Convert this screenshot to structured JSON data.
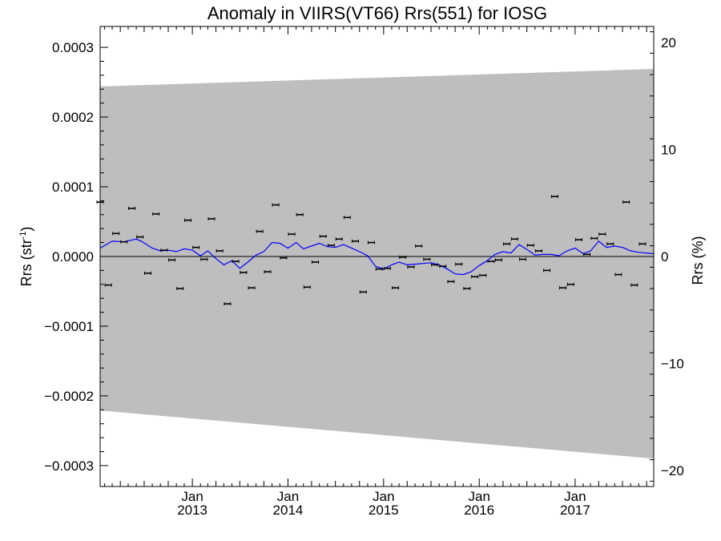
{
  "chart_data": {
    "type": "scatter",
    "title": "Anomaly in VIIRS(VT66) Rrs(551) for IOSG",
    "ylabel_left": "Rrs (str",
    "ylabel_left_sup": "-1",
    "ylabel_left_close": ")",
    "ylabel_right": "Rrs (%)",
    "xlim": [
      "2012-01-15",
      "2017-10-28"
    ],
    "ylim_left": [
      -0.00033,
      0.00033
    ],
    "ylim_right": [
      -21.5,
      21.5
    ],
    "x_ticks": [
      {
        "month": "Jan",
        "year": "2013",
        "date": "2013-01-01"
      },
      {
        "month": "Jan",
        "year": "2014",
        "date": "2014-01-01"
      },
      {
        "month": "Jan",
        "year": "2015",
        "date": "2015-01-01"
      },
      {
        "month": "Jan",
        "year": "2016",
        "date": "2016-01-01"
      },
      {
        "month": "Jan",
        "year": "2017",
        "date": "2017-01-01"
      }
    ],
    "y_ticks_left": [
      {
        "value": 0.0003,
        "label": "0.0003"
      },
      {
        "value": 0.0002,
        "label": "0.0002"
      },
      {
        "value": 0.0001,
        "label": "0.0001"
      },
      {
        "value": 0.0,
        "label": "0.0000"
      },
      {
        "value": -0.0001,
        "label": "−0.0001"
      },
      {
        "value": -0.0002,
        "label": "−0.0002"
      },
      {
        "value": -0.0003,
        "label": "−0.0003"
      }
    ],
    "y_ticks_right": [
      {
        "value": 20,
        "label": "20"
      },
      {
        "value": 10,
        "label": "10"
      },
      {
        "value": 0,
        "label": "0"
      },
      {
        "value": -10,
        "label": "−10"
      },
      {
        "value": -20,
        "label": "−20"
      }
    ],
    "uncertainty_band": {
      "x": [
        "2012-01-15",
        "2017-10-28"
      ],
      "upper": [
        0.000244,
        0.000269
      ],
      "lower": [
        -0.000221,
        -0.00029
      ],
      "color": "#bebebe"
    },
    "zero_line": 0.0,
    "series": [
      {
        "marker": "errorbar",
        "color": "#000000",
        "points": [
          {
            "x": "2012-01-15",
            "y": 7.8e-05
          },
          {
            "x": "2012-02-15",
            "y": -4.1e-05
          },
          {
            "x": "2012-03-15",
            "y": 3.3e-05
          },
          {
            "x": "2012-04-15",
            "y": 2.1e-05
          },
          {
            "x": "2012-05-15",
            "y": 6.9e-05
          },
          {
            "x": "2012-06-15",
            "y": 2.8e-05
          },
          {
            "x": "2012-07-15",
            "y": -2.4e-05
          },
          {
            "x": "2012-08-15",
            "y": 6.1e-05
          },
          {
            "x": "2012-09-15",
            "y": 9e-06
          },
          {
            "x": "2012-10-15",
            "y": -5e-06
          },
          {
            "x": "2012-11-15",
            "y": -4.6e-05
          },
          {
            "x": "2012-12-15",
            "y": 5.2e-05
          },
          {
            "x": "2013-01-15",
            "y": 1.3e-05
          },
          {
            "x": "2013-02-15",
            "y": -4e-06
          },
          {
            "x": "2013-03-15",
            "y": 5.4e-05
          },
          {
            "x": "2013-04-15",
            "y": 8e-06
          },
          {
            "x": "2013-05-15",
            "y": -6.8e-05
          },
          {
            "x": "2013-06-15",
            "y": -7e-06
          },
          {
            "x": "2013-07-15",
            "y": -2.3e-05
          },
          {
            "x": "2013-08-15",
            "y": -4.5e-05
          },
          {
            "x": "2013-09-15",
            "y": 3.6e-05
          },
          {
            "x": "2013-10-15",
            "y": -2.2e-05
          },
          {
            "x": "2013-11-15",
            "y": 7.4e-05
          },
          {
            "x": "2013-12-15",
            "y": -2e-06
          },
          {
            "x": "2014-01-15",
            "y": 3.2e-05
          },
          {
            "x": "2014-02-15",
            "y": 6e-05
          },
          {
            "x": "2014-03-15",
            "y": -4.4e-05
          },
          {
            "x": "2014-04-15",
            "y": -8e-06
          },
          {
            "x": "2014-05-15",
            "y": 2.9e-05
          },
          {
            "x": "2014-06-15",
            "y": 1.6e-05
          },
          {
            "x": "2014-07-15",
            "y": 2.5e-05
          },
          {
            "x": "2014-08-15",
            "y": 5.6e-05
          },
          {
            "x": "2014-09-15",
            "y": 2.2e-05
          },
          {
            "x": "2014-10-15",
            "y": -5.1e-05
          },
          {
            "x": "2014-11-15",
            "y": 2e-05
          },
          {
            "x": "2014-12-15",
            "y": -1.8e-05
          },
          {
            "x": "2015-01-15",
            "y": -1.7e-05
          },
          {
            "x": "2015-02-15",
            "y": -4.5e-05
          },
          {
            "x": "2015-03-15",
            "y": -1e-06
          },
          {
            "x": "2015-04-15",
            "y": -1.5e-05
          },
          {
            "x": "2015-05-15",
            "y": 1.5e-05
          },
          {
            "x": "2015-06-15",
            "y": -4e-06
          },
          {
            "x": "2015-07-15",
            "y": -1.2e-05
          },
          {
            "x": "2015-08-15",
            "y": -1.4e-05
          },
          {
            "x": "2015-09-15",
            "y": -3.6e-05
          },
          {
            "x": "2015-10-15",
            "y": -1.1e-05
          },
          {
            "x": "2015-11-15",
            "y": -4.6e-05
          },
          {
            "x": "2015-12-15",
            "y": -2.9e-05
          },
          {
            "x": "2016-01-15",
            "y": -2.7e-05
          },
          {
            "x": "2016-02-15",
            "y": -7e-06
          },
          {
            "x": "2016-03-15",
            "y": -5e-06
          },
          {
            "x": "2016-04-15",
            "y": 1.8e-05
          },
          {
            "x": "2016-05-15",
            "y": 2.5e-05
          },
          {
            "x": "2016-06-15",
            "y": -4e-06
          },
          {
            "x": "2016-07-15",
            "y": 1.6e-05
          },
          {
            "x": "2016-08-15",
            "y": 8e-06
          },
          {
            "x": "2016-09-15",
            "y": -2e-05
          },
          {
            "x": "2016-10-15",
            "y": 8.6e-05
          },
          {
            "x": "2016-11-15",
            "y": -4.5e-05
          },
          {
            "x": "2016-12-15",
            "y": -4e-05
          },
          {
            "x": "2017-01-15",
            "y": 2.4e-05
          },
          {
            "x": "2017-02-15",
            "y": 3e-06
          },
          {
            "x": "2017-03-15",
            "y": 2.6e-05
          },
          {
            "x": "2017-04-15",
            "y": 3.2e-05
          },
          {
            "x": "2017-05-15",
            "y": 1.8e-05
          },
          {
            "x": "2017-06-15",
            "y": -2.6e-05
          },
          {
            "x": "2017-07-15",
            "y": 7.8e-05
          },
          {
            "x": "2017-08-15",
            "y": -4.1e-05
          },
          {
            "x": "2017-09-15",
            "y": 1.8e-05
          }
        ]
      },
      {
        "marker": "line",
        "color": "#0000ff",
        "points": [
          {
            "x": "2012-01-15",
            "y": 1.2e-05
          },
          {
            "x": "2012-03-01",
            "y": 2.2e-05
          },
          {
            "x": "2012-04-15",
            "y": 2.1e-05
          },
          {
            "x": "2012-06-01",
            "y": 2.5e-05
          },
          {
            "x": "2012-06-20",
            "y": 2.2e-05
          },
          {
            "x": "2012-08-01",
            "y": 1.2e-05
          },
          {
            "x": "2012-09-01",
            "y": 8e-06
          },
          {
            "x": "2012-10-01",
            "y": 9e-06
          },
          {
            "x": "2012-11-01",
            "y": 7e-06
          },
          {
            "x": "2012-12-01",
            "y": 1.1e-05
          },
          {
            "x": "2013-01-01",
            "y": 9e-06
          },
          {
            "x": "2013-02-01",
            "y": 1e-06
          },
          {
            "x": "2013-03-01",
            "y": 8e-06
          },
          {
            "x": "2013-04-01",
            "y": -3e-06
          },
          {
            "x": "2013-05-01",
            "y": -1.2e-05
          },
          {
            "x": "2013-06-01",
            "y": -6e-06
          },
          {
            "x": "2013-07-01",
            "y": -1.7e-05
          },
          {
            "x": "2013-08-01",
            "y": -8e-06
          },
          {
            "x": "2013-09-01",
            "y": 2e-06
          },
          {
            "x": "2013-10-01",
            "y": 7e-06
          },
          {
            "x": "2013-11-01",
            "y": 2e-05
          },
          {
            "x": "2013-12-01",
            "y": 1.9e-05
          },
          {
            "x": "2014-01-01",
            "y": 1.2e-05
          },
          {
            "x": "2014-02-01",
            "y": 2e-05
          },
          {
            "x": "2014-03-01",
            "y": 1.1e-05
          },
          {
            "x": "2014-04-01",
            "y": 1.5e-05
          },
          {
            "x": "2014-05-01",
            "y": 1.9e-05
          },
          {
            "x": "2014-06-01",
            "y": 1.4e-05
          },
          {
            "x": "2014-07-01",
            "y": 1.3e-05
          },
          {
            "x": "2014-08-01",
            "y": 1.7e-05
          },
          {
            "x": "2014-09-01",
            "y": 1.2e-05
          },
          {
            "x": "2014-10-01",
            "y": 7e-06
          },
          {
            "x": "2014-11-01",
            "y": 1e-06
          },
          {
            "x": "2014-12-01",
            "y": -1.4e-05
          },
          {
            "x": "2015-01-01",
            "y": -1.8e-05
          },
          {
            "x": "2015-02-01",
            "y": -1.2e-05
          },
          {
            "x": "2015-03-01",
            "y": -8e-06
          },
          {
            "x": "2015-04-01",
            "y": -1.2e-05
          },
          {
            "x": "2015-05-01",
            "y": -1.1e-05
          },
          {
            "x": "2015-06-01",
            "y": -1e-05
          },
          {
            "x": "2015-07-01",
            "y": -9e-06
          },
          {
            "x": "2015-08-01",
            "y": -1.2e-05
          },
          {
            "x": "2015-09-01",
            "y": -1.8e-05
          },
          {
            "x": "2015-10-01",
            "y": -2.5e-05
          },
          {
            "x": "2015-11-01",
            "y": -2.6e-05
          },
          {
            "x": "2015-12-01",
            "y": -2.2e-05
          },
          {
            "x": "2016-01-01",
            "y": -1.3e-05
          },
          {
            "x": "2016-02-01",
            "y": -6e-06
          },
          {
            "x": "2016-03-01",
            "y": 3e-06
          },
          {
            "x": "2016-04-01",
            "y": 7e-06
          },
          {
            "x": "2016-05-01",
            "y": 5e-06
          },
          {
            "x": "2016-06-01",
            "y": 1.7e-05
          },
          {
            "x": "2016-07-01",
            "y": 1e-05
          },
          {
            "x": "2016-08-01",
            "y": 2e-06
          },
          {
            "x": "2016-09-01",
            "y": 3e-06
          },
          {
            "x": "2016-10-01",
            "y": 3e-06
          },
          {
            "x": "2016-11-01",
            "y": 1e-06
          },
          {
            "x": "2016-12-01",
            "y": 8e-06
          },
          {
            "x": "2017-01-01",
            "y": 1.2e-05
          },
          {
            "x": "2017-02-01",
            "y": 4e-06
          },
          {
            "x": "2017-03-01",
            "y": 8e-06
          },
          {
            "x": "2017-04-01",
            "y": 2.2e-05
          },
          {
            "x": "2017-05-01",
            "y": 1.3e-05
          },
          {
            "x": "2017-06-01",
            "y": 1.5e-05
          },
          {
            "x": "2017-07-01",
            "y": 1.3e-05
          },
          {
            "x": "2017-08-01",
            "y": 8e-06
          },
          {
            "x": "2017-09-01",
            "y": 6e-06
          },
          {
            "x": "2017-10-28",
            "y": 4e-06
          }
        ]
      }
    ],
    "grid": false,
    "legend": "none"
  }
}
